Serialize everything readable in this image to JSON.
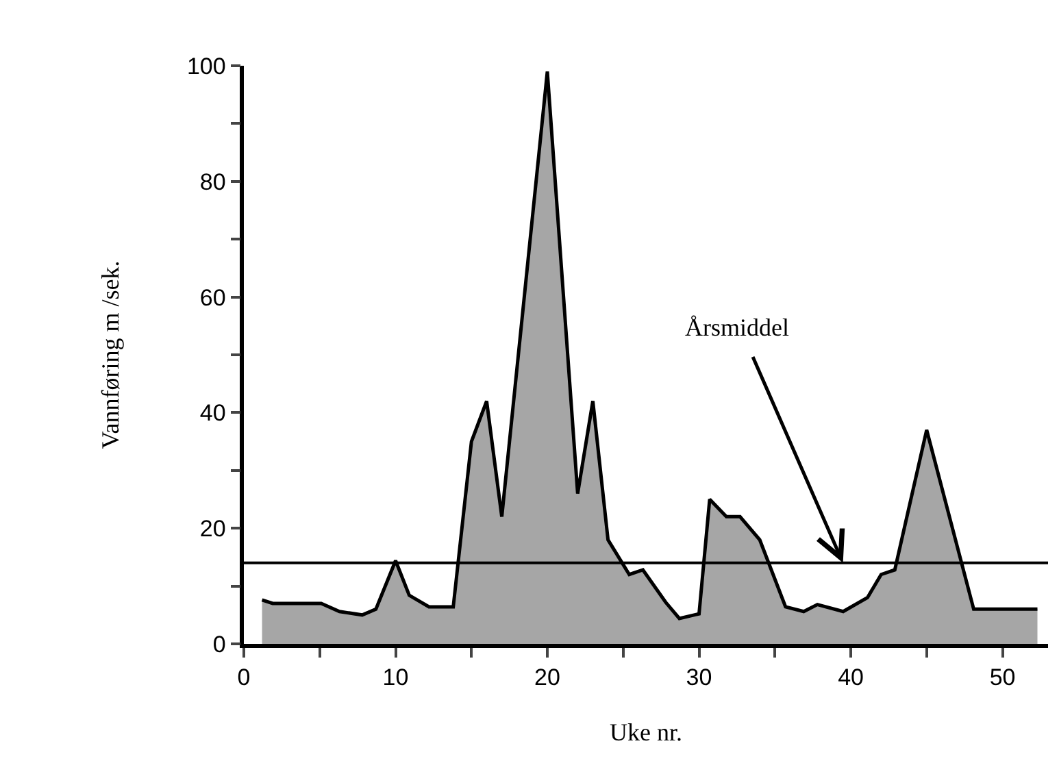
{
  "chart_data": {
    "type": "area",
    "xlabel": "Uke nr.",
    "ylabel": "Vannføring m /sek.",
    "x": [
      1.2,
      1.9,
      5.1,
      6.3,
      7.8,
      8.7,
      10,
      10.9,
      12.2,
      13.8,
      15,
      16,
      17,
      20,
      22,
      23,
      24,
      25.4,
      26.3,
      27.8,
      28.7,
      30,
      30.7,
      31.8,
      32.7,
      34,
      35.7,
      36.9,
      37.8,
      39.5,
      41.1,
      42,
      42.9,
      45,
      48.1,
      52.3
    ],
    "series": [
      {
        "color": "#a6a6a6",
        "values": [
          7.6,
          7,
          7,
          5.6,
          5,
          6,
          14.4,
          8.4,
          6.4,
          6.4,
          35,
          42,
          22,
          99,
          26,
          42,
          18,
          12,
          12.8,
          7.2,
          4.4,
          5.2,
          25,
          22,
          22,
          18,
          6.4,
          5.6,
          6.8,
          5.6,
          8,
          12,
          12.8,
          37,
          6,
          6
        ]
      }
    ],
    "xlim": [
      0,
      53
    ],
    "ylim": [
      0,
      100
    ],
    "xticks": [
      0,
      {
        "value": 5,
        "label": null
      },
      10,
      {
        "value": 15,
        "label": null
      },
      20,
      {
        "value": 25,
        "label": null
      },
      30,
      {
        "value": 35,
        "label": null
      },
      40,
      {
        "value": 45,
        "label": null
      },
      50
    ],
    "yticks": [
      0,
      {
        "value": 10,
        "label": null
      },
      20,
      {
        "value": 30,
        "label": null
      },
      40,
      {
        "value": 50,
        "label": null
      },
      60,
      {
        "value": 70,
        "label": null
      },
      80,
      {
        "value": 90,
        "label": null
      },
      100
    ],
    "ref_lines": [
      {
        "axis": "y",
        "value": 14,
        "label": "Årsmiddel",
        "color": "#000000"
      }
    ],
    "marker": "none",
    "line_style": "solid"
  }
}
